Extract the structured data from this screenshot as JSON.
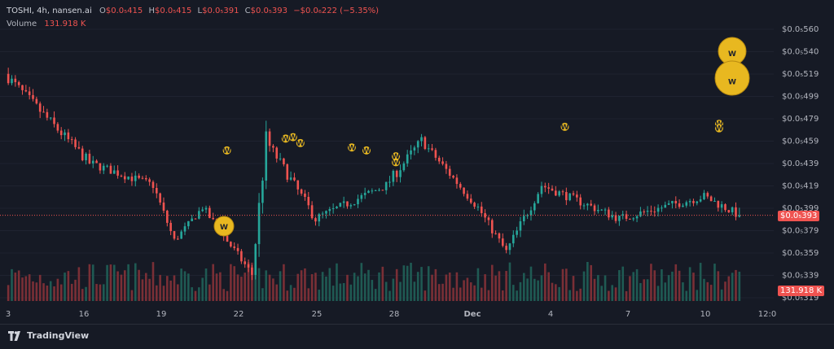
{
  "legend": {
    "symbol": "TOSHI, 4h, nansen.ai",
    "open_label": "O",
    "open": "$0.0₅415",
    "high_label": "H",
    "high": "$0.0₅415",
    "low_label": "L",
    "low": "$0.0₅391",
    "close_label": "C",
    "close": "$0.0₅393",
    "change": "−$0.0₆222 (−5.35%)",
    "volume_label": "Volume",
    "volume": "131.918 K"
  },
  "price_tag": "$0.0₅393",
  "volume_tag": "131.918 K",
  "brand": "TradingView",
  "colors": {
    "up": "#26a69a",
    "down": "#ef5350",
    "marker": "#e8b820",
    "background": "#161a25"
  },
  "chart_data": {
    "type": "candlestick",
    "y_axis_labels": [
      "$0.0₅560",
      "$0.0₅540",
      "$0.0₅519",
      "$0.0₅499",
      "$0.0₅479",
      "$0.0₅459",
      "$0.0₅439",
      "$0.0₅419",
      "$0.0₅399",
      "$0.0₅379",
      "$0.0₅359",
      "$0.0₅339",
      "$0.0₅319"
    ],
    "x_axis_labels": [
      "3",
      "16",
      "19",
      "22",
      "25",
      "28",
      "Dec",
      "4",
      "7",
      "10",
      "12:0"
    ],
    "ylim": [
      3.19e-06,
      5.6e-06
    ],
    "last_close": 3.93e-06,
    "last_volume": 131918,
    "marker_label": "W",
    "segments": [
      {
        "start_close": 5.2e-06,
        "end_close": 4.4e-06,
        "candles": 24,
        "volatility": 1e-07
      },
      {
        "start_close": 4.4e-06,
        "end_close": 4.2e-06,
        "candles": 18,
        "volatility": 8e-08
      },
      {
        "start_close": 4.2e-06,
        "end_close": 3.7e-06,
        "candles": 6,
        "volatility": 8e-08
      },
      {
        "start_close": 3.7e-06,
        "end_close": 4e-06,
        "candles": 8,
        "volatility": 6e-08
      },
      {
        "start_close": 4e-06,
        "end_close": 3.4e-06,
        "candles": 14,
        "volatility": 8e-08
      },
      {
        "start_close": 3.4e-06,
        "end_close": 4.6e-06,
        "candles": 4,
        "volatility": 2e-07
      },
      {
        "start_close": 4.6e-06,
        "end_close": 3.9e-06,
        "candles": 14,
        "volatility": 1e-07
      },
      {
        "start_close": 3.9e-06,
        "end_close": 4.2e-06,
        "candles": 20,
        "volatility": 8e-08
      },
      {
        "start_close": 4.2e-06,
        "end_close": 4.6e-06,
        "candles": 10,
        "volatility": 1e-07
      },
      {
        "start_close": 4.6e-06,
        "end_close": 4e-06,
        "candles": 16,
        "volatility": 8e-08
      },
      {
        "start_close": 4e-06,
        "end_close": 3.6e-06,
        "candles": 8,
        "volatility": 8e-08
      },
      {
        "start_close": 3.6e-06,
        "end_close": 4.2e-06,
        "candles": 10,
        "volatility": 1e-07
      },
      {
        "start_close": 4.2e-06,
        "end_close": 3.9e-06,
        "candles": 22,
        "volatility": 8e-08
      },
      {
        "start_close": 3.9e-06,
        "end_close": 4.1e-06,
        "candles": 24,
        "volatility": 8e-08
      },
      {
        "start_close": 4.1e-06,
        "end_close": 3.93e-06,
        "candles": 10,
        "volatility": 8e-08
      }
    ]
  }
}
